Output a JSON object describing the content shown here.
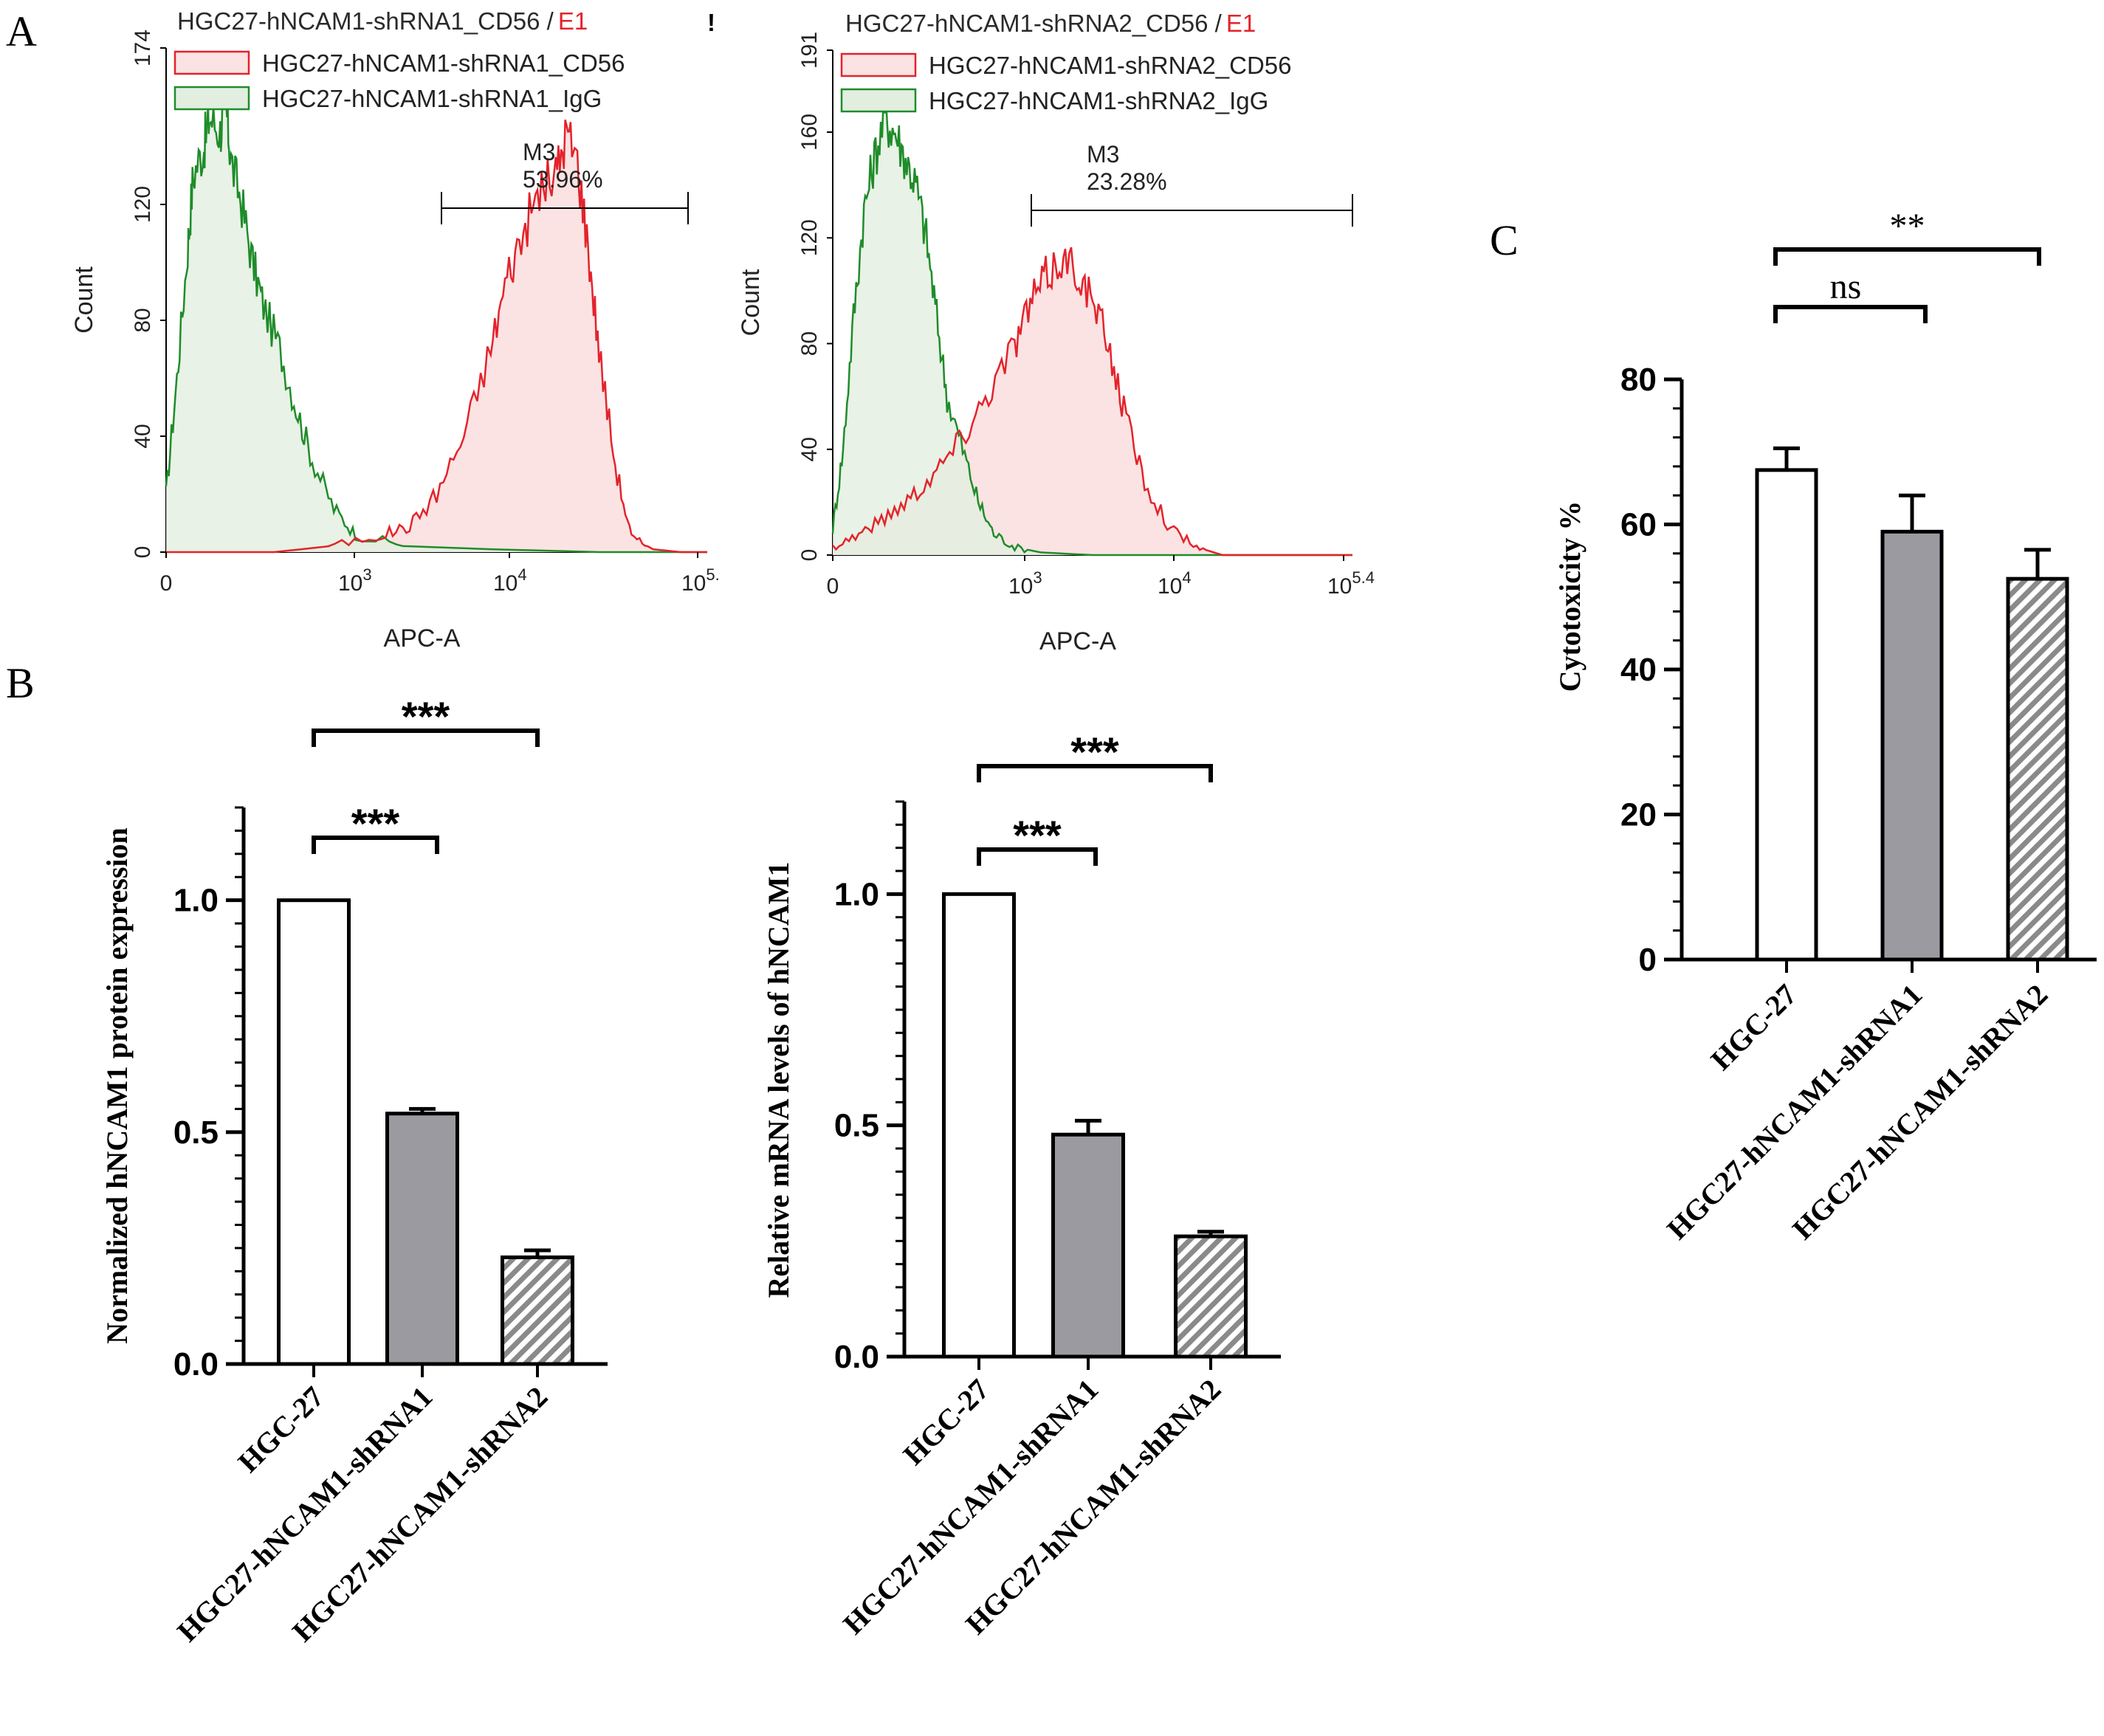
{
  "panels": {
    "A": "A",
    "B": "B",
    "C": "C"
  },
  "colors": {
    "cd56_line": "#e3232b",
    "cd56_fill": "#fbe3e3",
    "igg_line": "#1f8c2a",
    "igg_fill": "#e2efe0",
    "gate_marker": "#e3232b",
    "bar_outline": "#000000",
    "bar_grey": "#9b9aa0",
    "bar_hatch": "#8a8a8a"
  },
  "flow": [
    {
      "title_main": "HGC27-hNCAM1-shRNA1_CD56 /",
      "title_gate": "E1",
      "marker": "!",
      "legend": [
        "HGC27-hNCAM1-shRNA1_CD56",
        "HGC27-hNCAM1-shRNA1_IgG"
      ],
      "yticks": [
        "0",
        "40",
        "80",
        "120",
        "174"
      ],
      "xticks": [
        {
          "base": "0",
          "exp": ""
        },
        {
          "base": "10",
          "exp": "3"
        },
        {
          "base": "10",
          "exp": "4"
        },
        {
          "base": "10",
          "exp": "5."
        }
      ],
      "xlabel": "APC-A",
      "ylabel": "Count",
      "gate_label": "M3",
      "gate_value": "53.96%"
    },
    {
      "title_main": "HGC27-hNCAM1-shRNA2_CD56 /",
      "title_gate": "E1",
      "marker": "",
      "legend": [
        "HGC27-hNCAM1-shRNA2_CD56",
        "HGC27-hNCAM1-shRNA2_IgG"
      ],
      "yticks": [
        "0",
        "40",
        "80",
        "120",
        "160",
        "191"
      ],
      "xticks": [
        {
          "base": "0",
          "exp": ""
        },
        {
          "base": "10",
          "exp": "3"
        },
        {
          "base": "10",
          "exp": "4"
        },
        {
          "base": "10",
          "exp": "5.4"
        }
      ],
      "xlabel": "APC-A",
      "ylabel": "Count",
      "gate_label": "M3",
      "gate_value": "23.28%"
    }
  ],
  "chart_data": [
    {
      "type": "line",
      "panel": "A",
      "title": "HGC27-hNCAM1-shRNA1_CD56 / E1",
      "xlabel": "APC-A",
      "ylabel": "Count",
      "xscale": "biexponential",
      "ylim": [
        0,
        174
      ],
      "series": [
        {
          "name": "HGC27-hNCAM1-shRNA1_IgG",
          "x": [
            0,
            0.02,
            0.04,
            0.05,
            0.07,
            0.08,
            0.1,
            0.11,
            0.12,
            0.14,
            0.16,
            0.18,
            0.21,
            0.24,
            0.27,
            0.31,
            0.35,
            0.45,
            0.6,
            0.8,
            1.0
          ],
          "y": [
            20,
            60,
            105,
            130,
            140,
            150,
            145,
            155,
            135,
            120,
            100,
            85,
            70,
            50,
            32,
            15,
            6,
            2,
            1,
            0,
            0
          ]
        },
        {
          "name": "HGC27-hNCAM1-shRNA1_CD56",
          "x": [
            0,
            0.2,
            0.3,
            0.4,
            0.45,
            0.5,
            0.55,
            0.6,
            0.63,
            0.66,
            0.69,
            0.72,
            0.74,
            0.76,
            0.78,
            0.8,
            0.83,
            0.86,
            0.9,
            0.95,
            1.0
          ],
          "y": [
            0,
            0,
            2,
            6,
            9,
            20,
            40,
            70,
            95,
            110,
            125,
            130,
            145,
            135,
            105,
            70,
            30,
            5,
            1,
            0,
            0
          ]
        }
      ],
      "annotations": [
        {
          "label": "M3",
          "value": "53.96%"
        }
      ]
    },
    {
      "type": "line",
      "panel": "A",
      "title": "HGC27-hNCAM1-shRNA2_CD56 / E1",
      "xlabel": "APC-A",
      "ylabel": "Count",
      "xscale": "biexponential",
      "ylim": [
        0,
        191
      ],
      "series": [
        {
          "name": "HGC27-hNCAM1-shRNA2_IgG",
          "x": [
            0,
            0.02,
            0.04,
            0.06,
            0.08,
            0.1,
            0.12,
            0.14,
            0.16,
            0.18,
            0.2,
            0.22,
            0.25,
            0.28,
            0.31,
            0.35,
            0.4,
            0.5,
            1.0
          ],
          "y": [
            10,
            40,
            90,
            130,
            150,
            165,
            160,
            150,
            140,
            120,
            90,
            60,
            40,
            20,
            8,
            3,
            1,
            0,
            0
          ]
        },
        {
          "name": "HGC27-hNCAM1-shRNA2_CD56",
          "x": [
            0,
            0.05,
            0.1,
            0.15,
            0.2,
            0.25,
            0.3,
            0.35,
            0.38,
            0.41,
            0.44,
            0.47,
            0.5,
            0.53,
            0.56,
            0.6,
            0.65,
            0.7,
            0.75,
            1.0
          ],
          "y": [
            3,
            8,
            14,
            22,
            32,
            45,
            62,
            80,
            95,
            105,
            112,
            108,
            95,
            80,
            55,
            28,
            10,
            3,
            0,
            0
          ]
        }
      ],
      "annotations": [
        {
          "label": "M3",
          "value": "23.28%"
        }
      ]
    },
    {
      "type": "bar",
      "panel": "B",
      "ylabel": "Normalized hNCAM1 protein expression",
      "categories": [
        "HGC-27",
        "HGC27-hNCAM1-shRNA1",
        "HGC27-hNCAM1-shRNA2"
      ],
      "values": [
        1.0,
        0.54,
        0.23
      ],
      "errors": [
        0,
        0.01,
        0.015
      ],
      "ylim": [
        0,
        1.2
      ],
      "yticks": [
        "0.0",
        "0.5",
        "1.0"
      ],
      "significance": [
        {
          "from": 0,
          "to": 1,
          "label": "***"
        },
        {
          "from": 0,
          "to": 2,
          "label": "***"
        }
      ]
    },
    {
      "type": "bar",
      "panel": "B",
      "ylabel": "Relative mRNA levels of hNCAM1",
      "categories": [
        "HGC-27",
        "HGC27-hNCAM1-shRNA1",
        "HGC27-hNCAM1-shRNA2"
      ],
      "values": [
        1.0,
        0.48,
        0.26
      ],
      "errors": [
        0,
        0.03,
        0.01
      ],
      "ylim": [
        0,
        1.2
      ],
      "yticks": [
        "0.0",
        "0.5",
        "1.0"
      ],
      "significance": [
        {
          "from": 0,
          "to": 1,
          "label": "***"
        },
        {
          "from": 0,
          "to": 2,
          "label": "***"
        }
      ]
    },
    {
      "type": "bar",
      "panel": "C",
      "ylabel": "Cytotoxicity %",
      "categories": [
        "HGC-27",
        "HGC27-hNCAM1-shRNA1",
        "HGC27-hNCAM1-shRNA2"
      ],
      "values": [
        67.5,
        59,
        52.5
      ],
      "errors": [
        3,
        5,
        4
      ],
      "ylim": [
        0,
        80
      ],
      "yticks": [
        "0",
        "20",
        "40",
        "60",
        "80"
      ],
      "significance": [
        {
          "from": 0,
          "to": 1,
          "label": "ns"
        },
        {
          "from": 0,
          "to": 2,
          "label": "**"
        }
      ]
    }
  ]
}
